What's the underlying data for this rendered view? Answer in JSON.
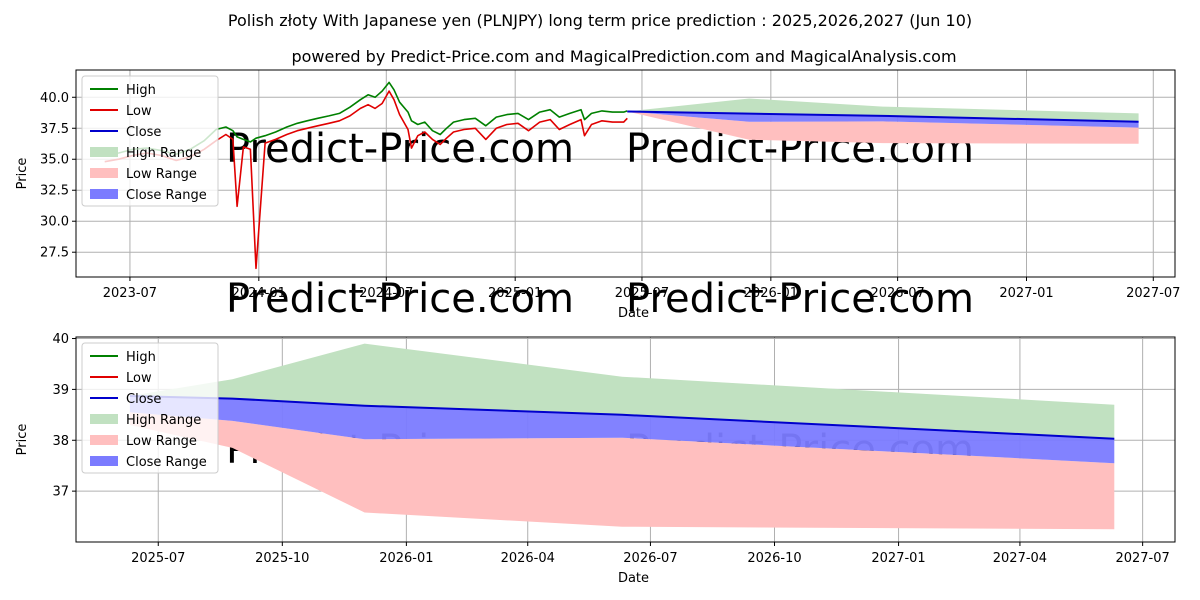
{
  "title": "Polish złoty With Japanese yen (PLNJPY) long term price prediction : 2025,2026,2027 (Jun 10)",
  "subtitle": "powered by Predict-Price.com and MagicalPrediction.com and MagicalAnalysis.com",
  "watermark": "Predict-Price.com",
  "colors": {
    "high": "#008000",
    "low": "#e00000",
    "close": "#0000cc",
    "high_range": "#c1e1c1",
    "low_range": "#ffbfbf",
    "close_range": "#7b7bff",
    "grid": "#b0b0b0"
  },
  "chart_data": [
    {
      "type": "line",
      "xlabel": "Date",
      "ylabel": "Price",
      "xlim": [
        "2023-04-15",
        "2027-08-01"
      ],
      "ylim": [
        25.5,
        42.2
      ],
      "xticks": [
        {
          "date": "2023-07-01",
          "label": "2023-07"
        },
        {
          "date": "2024-01-01",
          "label": "2024-01"
        },
        {
          "date": "2024-07-01",
          "label": "2024-07"
        },
        {
          "date": "2025-01-01",
          "label": "2025-01"
        },
        {
          "date": "2025-07-01",
          "label": "2025-07"
        },
        {
          "date": "2026-01-01",
          "label": "2026-01"
        },
        {
          "date": "2026-07-01",
          "label": "2026-07"
        },
        {
          "date": "2027-01-01",
          "label": "2027-01"
        },
        {
          "date": "2027-07-01",
          "label": "2027-07"
        }
      ],
      "yticks": [
        {
          "value": 27.5,
          "label": "27.5"
        },
        {
          "value": 30.0,
          "label": "30.0"
        },
        {
          "value": 32.5,
          "label": "32.5"
        },
        {
          "value": 35.0,
          "label": "35.0"
        },
        {
          "value": 37.5,
          "label": "37.5"
        },
        {
          "value": 40.0,
          "label": "40.0"
        }
      ],
      "grid": true,
      "legend": "upper left",
      "legend_entries": [
        "High",
        "Low",
        "Close",
        "High Range",
        "Low Range",
        "Close Range"
      ],
      "history": {
        "dates": [
          "2023-05-26",
          "2023-06-15",
          "2023-07-05",
          "2023-07-25",
          "2023-08-15",
          "2023-09-05",
          "2023-09-25",
          "2023-10-15",
          "2023-11-01",
          "2023-11-15",
          "2023-11-25",
          "2023-12-01",
          "2023-12-10",
          "2023-12-20",
          "2023-12-28",
          "2024-01-10",
          "2024-01-25",
          "2024-02-10",
          "2024-02-25",
          "2024-03-10",
          "2024-03-25",
          "2024-04-10",
          "2024-04-25",
          "2024-05-10",
          "2024-05-25",
          "2024-06-05",
          "2024-06-15",
          "2024-06-25",
          "2024-07-05",
          "2024-07-12",
          "2024-07-20",
          "2024-08-01",
          "2024-08-06",
          "2024-08-15",
          "2024-08-25",
          "2024-09-05",
          "2024-09-16",
          "2024-09-25",
          "2024-10-05",
          "2024-10-20",
          "2024-11-05",
          "2024-11-20",
          "2024-12-05",
          "2024-12-20",
          "2025-01-05",
          "2025-01-20",
          "2025-02-05",
          "2025-02-20",
          "2025-03-05",
          "2025-03-20",
          "2025-04-05",
          "2025-04-10",
          "2025-04-20",
          "2025-05-05",
          "2025-05-20",
          "2025-06-05",
          "2025-06-10"
        ],
        "high": [
          35.3,
          35.5,
          35.8,
          35.9,
          35.7,
          35.4,
          35.8,
          36.5,
          37.4,
          37.6,
          37.3,
          36.8,
          36.6,
          36.4,
          36.7,
          36.9,
          37.2,
          37.6,
          37.9,
          38.1,
          38.3,
          38.5,
          38.7,
          39.2,
          39.8,
          40.2,
          40.0,
          40.5,
          41.2,
          40.6,
          39.6,
          38.8,
          38.1,
          37.8,
          38.0,
          37.3,
          37.0,
          37.5,
          38.0,
          38.2,
          38.3,
          37.7,
          38.4,
          38.6,
          38.7,
          38.2,
          38.8,
          39.0,
          38.4,
          38.7,
          39.0,
          38.2,
          38.7,
          38.9,
          38.8,
          38.8,
          38.9
        ],
        "low": [
          34.8,
          35.0,
          35.3,
          35.5,
          35.3,
          34.9,
          35.2,
          35.8,
          36.5,
          37.0,
          36.6,
          31.2,
          36.0,
          35.8,
          26.2,
          36.3,
          36.6,
          37.0,
          37.3,
          37.5,
          37.7,
          37.9,
          38.1,
          38.5,
          39.1,
          39.4,
          39.1,
          39.5,
          40.5,
          39.8,
          38.6,
          37.4,
          35.9,
          36.9,
          37.2,
          36.6,
          36.2,
          36.7,
          37.2,
          37.4,
          37.5,
          36.6,
          37.5,
          37.8,
          37.9,
          37.3,
          38.0,
          38.2,
          37.4,
          37.8,
          38.2,
          36.9,
          37.8,
          38.1,
          38.0,
          38.0,
          38.3
        ]
      },
      "forecast": {
        "dates": [
          "2025-06-10",
          "2025-12-01",
          "2026-06-10",
          "2027-06-10"
        ],
        "close": [
          38.85,
          38.68,
          38.5,
          38.03
        ],
        "close_range_upper": [
          38.85,
          38.68,
          38.5,
          38.03
        ],
        "close_range_lower": [
          38.85,
          38.02,
          38.05,
          37.55
        ],
        "high_range_upper": [
          38.85,
          39.9,
          39.25,
          38.7
        ],
        "high_range_lower": [
          38.85,
          38.68,
          38.5,
          38.03
        ],
        "low_range_upper": [
          38.85,
          38.02,
          38.05,
          37.55
        ],
        "low_range_lower": [
          38.85,
          36.58,
          36.3,
          36.25
        ]
      }
    },
    {
      "type": "area",
      "xlabel": "Date",
      "ylabel": "Price",
      "xlim": [
        "2025-05-01",
        "2027-07-25"
      ],
      "ylim": [
        36.0,
        40.03
      ],
      "xticks": [
        {
          "date": "2025-07-01",
          "label": "2025-07"
        },
        {
          "date": "2025-10-01",
          "label": "2025-10"
        },
        {
          "date": "2026-01-01",
          "label": "2026-01"
        },
        {
          "date": "2026-04-01",
          "label": "2026-04"
        },
        {
          "date": "2026-07-01",
          "label": "2026-07"
        },
        {
          "date": "2026-10-01",
          "label": "2026-10"
        },
        {
          "date": "2027-01-01",
          "label": "2027-01"
        },
        {
          "date": "2027-04-01",
          "label": "2027-04"
        },
        {
          "date": "2027-07-01",
          "label": "2027-07"
        }
      ],
      "yticks": [
        {
          "value": 37,
          "label": "37"
        },
        {
          "value": 38,
          "label": "38"
        },
        {
          "value": 39,
          "label": "39"
        },
        {
          "value": 40,
          "label": "40"
        }
      ],
      "grid": true,
      "legend": "upper left",
      "legend_entries": [
        "High",
        "Low",
        "Close",
        "High Range",
        "Low Range",
        "Close Range"
      ],
      "forecast": {
        "dates": [
          "2025-06-10",
          "2025-08-25",
          "2025-12-01",
          "2026-06-10",
          "2027-06-10"
        ],
        "close": [
          38.87,
          38.82,
          38.68,
          38.5,
          38.03
        ],
        "close_range_upper": [
          38.87,
          38.82,
          38.68,
          38.5,
          38.03
        ],
        "close_range_lower": [
          38.55,
          38.38,
          38.02,
          38.05,
          37.55
        ],
        "high_range_upper": [
          38.87,
          39.2,
          39.9,
          39.25,
          38.7
        ],
        "high_range_lower": [
          38.87,
          38.82,
          38.68,
          38.5,
          38.03
        ],
        "low_range_upper": [
          38.55,
          38.38,
          38.02,
          38.05,
          37.55
        ],
        "low_range_lower": [
          38.3,
          37.85,
          36.58,
          36.3,
          36.25
        ]
      }
    }
  ]
}
